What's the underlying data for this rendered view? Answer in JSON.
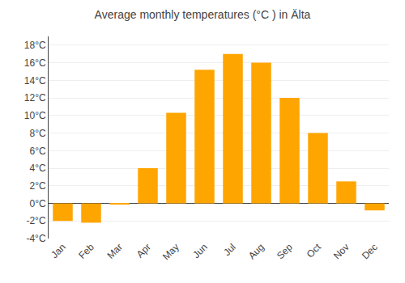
{
  "chart_data": {
    "type": "bar",
    "title": "Average monthly temperatures (°C ) in Älta",
    "categories": [
      "Jan",
      "Feb",
      "Mar",
      "Apr",
      "May",
      "Jun",
      "Jul",
      "Aug",
      "Sep",
      "Oct",
      "Nov",
      "Dec"
    ],
    "values": [
      -2.0,
      -2.2,
      -0.1,
      4.0,
      10.3,
      15.2,
      17.0,
      16.0,
      12.0,
      8.0,
      2.5,
      -0.8
    ],
    "color": "#FFA500",
    "ylim": [
      -4,
      19
    ],
    "yticks": [
      {
        "value": -4,
        "label": "-4°C"
      },
      {
        "value": -2,
        "label": "-2°C"
      },
      {
        "value": 0,
        "label": "0°C"
      },
      {
        "value": 2,
        "label": "2°C"
      },
      {
        "value": 4,
        "label": "4°C"
      },
      {
        "value": 6,
        "label": "6°C"
      },
      {
        "value": 8,
        "label": "8°C"
      },
      {
        "value": 10,
        "label": "10°C"
      },
      {
        "value": 12,
        "label": "12°C"
      },
      {
        "value": 14,
        "label": "14°C"
      },
      {
        "value": 16,
        "label": "16°C"
      },
      {
        "value": 18,
        "label": "18°C"
      }
    ],
    "grid": true
  }
}
